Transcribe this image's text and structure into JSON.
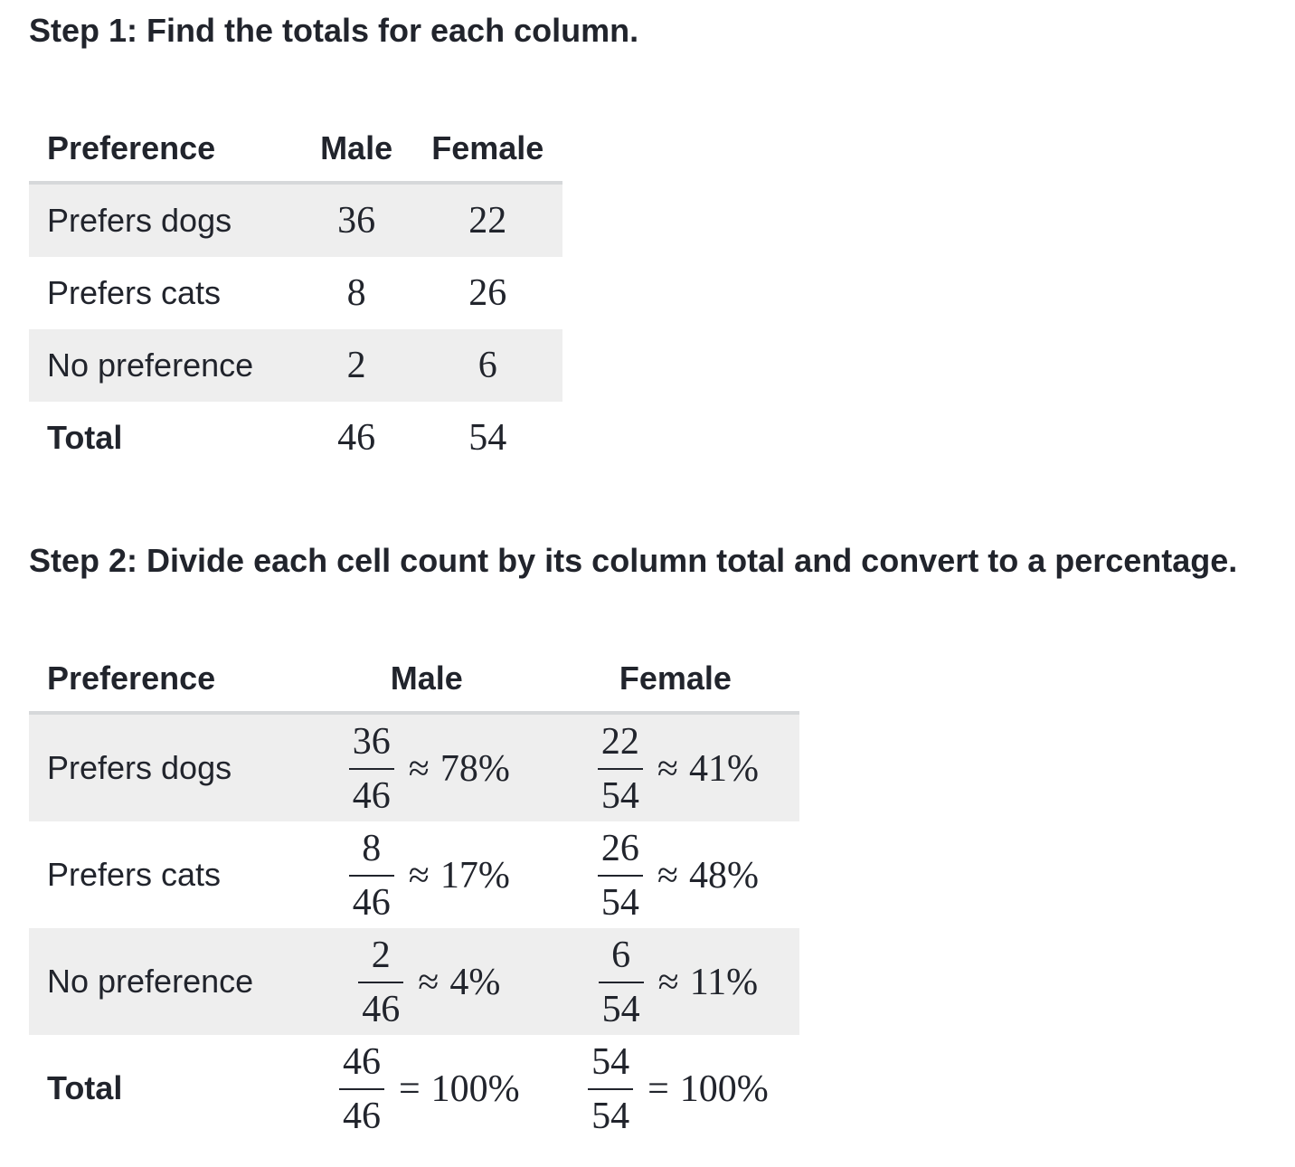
{
  "step1": {
    "heading": "Step 1: Find the totals for each column.",
    "table": {
      "headers": [
        "Preference",
        "Male",
        "Female"
      ],
      "rows": [
        {
          "label": "Prefers dogs",
          "male": "36",
          "female": "22"
        },
        {
          "label": "Prefers cats",
          "male": "8",
          "female": "26"
        },
        {
          "label": "No preference",
          "male": "2",
          "female": "6"
        },
        {
          "label": "Total",
          "male": "46",
          "female": "54"
        }
      ]
    }
  },
  "step2": {
    "heading": "Step 2: Divide each cell count by its column total and convert to a percentage.",
    "table": {
      "headers": [
        "Preference",
        "Male",
        "Female"
      ],
      "rows": [
        {
          "label": "Prefers dogs",
          "male": {
            "numerator": "36",
            "denominator": "46",
            "relation": "≈",
            "percent": "78%"
          },
          "female": {
            "numerator": "22",
            "denominator": "54",
            "relation": "≈",
            "percent": "41%"
          }
        },
        {
          "label": "Prefers cats",
          "male": {
            "numerator": "8",
            "denominator": "46",
            "relation": "≈",
            "percent": "17%"
          },
          "female": {
            "numerator": "26",
            "denominator": "54",
            "relation": "≈",
            "percent": "48%"
          }
        },
        {
          "label": "No preference",
          "male": {
            "numerator": "2",
            "denominator": "46",
            "relation": "≈",
            "percent": "4%"
          },
          "female": {
            "numerator": "6",
            "denominator": "54",
            "relation": "≈",
            "percent": "11%"
          }
        },
        {
          "label": "Total",
          "male": {
            "numerator": "46",
            "denominator": "46",
            "relation": "=",
            "percent": "100%"
          },
          "female": {
            "numerator": "54",
            "denominator": "54",
            "relation": "=",
            "percent": "100%"
          }
        }
      ]
    }
  },
  "colors": {
    "text": "#21242c",
    "row_shade": "#eeeeee",
    "header_rule": "#d6d8da",
    "background": "#ffffff"
  }
}
